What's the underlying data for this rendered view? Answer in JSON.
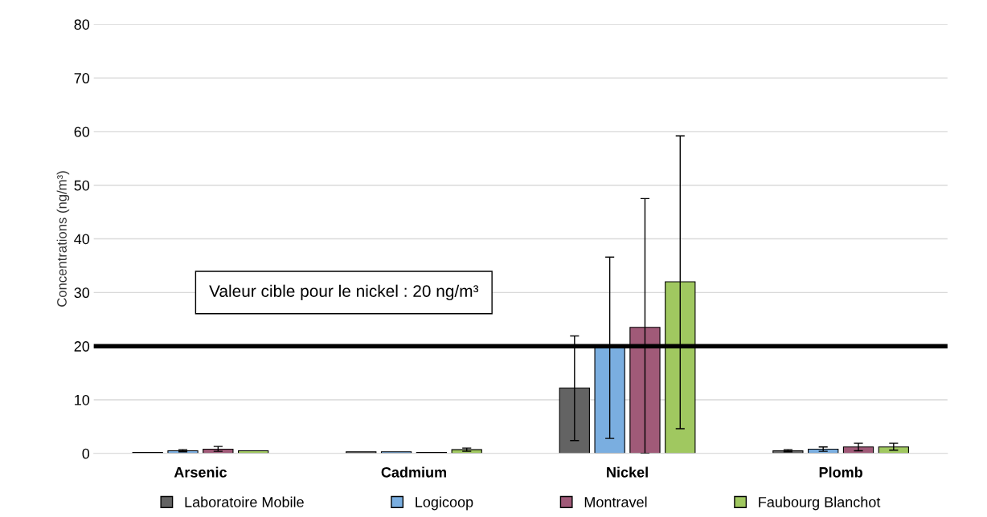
{
  "chart_data": {
    "type": "bar",
    "ylabel": "Concentrations (ng/m³)",
    "categories": [
      "Arsenic",
      "Cadmium",
      "Nickel",
      "Plomb"
    ],
    "series": [
      {
        "name": "Laboratoire Mobile",
        "color": "#636363",
        "values": [
          0.2,
          0.3,
          12.2,
          0.5
        ],
        "errors": [
          null,
          null,
          [
            2.4,
            21.9
          ],
          [
            0.3,
            0.7
          ]
        ]
      },
      {
        "name": "Logicoop",
        "color": "#7aaee0",
        "values": [
          0.5,
          0.3,
          20,
          0.8
        ],
        "errors": [
          [
            0.3,
            0.7
          ],
          null,
          [
            2.8,
            36.6
          ],
          [
            0.4,
            1.2
          ]
        ]
      },
      {
        "name": "Montravel",
        "color": "#a05a78",
        "values": [
          0.8,
          0.2,
          23.5,
          1.2
        ],
        "errors": [
          [
            0.4,
            1.3
          ],
          null,
          [
            0,
            47.5
          ],
          [
            0.5,
            1.9
          ]
        ]
      },
      {
        "name": "Faubourg Blanchot",
        "color": "#a0c860",
        "values": [
          0.5,
          0.7,
          32,
          1.2
        ],
        "errors": [
          null,
          [
            0.4,
            1.0
          ],
          [
            4.6,
            59.2
          ],
          [
            0.6,
            1.9
          ]
        ]
      }
    ],
    "ylim": [
      0,
      80
    ],
    "yticks": [
      0,
      10,
      20,
      30,
      40,
      50,
      60,
      70,
      80
    ],
    "ref_lines": [
      {
        "axis": "y",
        "value": 20,
        "label": "Valeur cible pour le nickel : 20 ng/m³",
        "color": "#000000",
        "line_style": "solid"
      }
    ],
    "grid": "y",
    "legend": "bottom"
  }
}
